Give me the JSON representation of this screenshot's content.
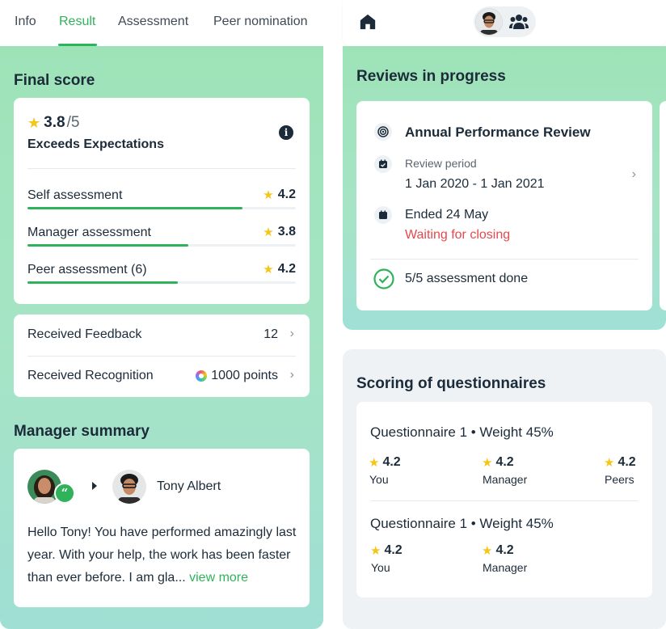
{
  "tabs": [
    {
      "label": "Info"
    },
    {
      "label": "Result"
    },
    {
      "label": "Assessment"
    },
    {
      "label": "Peer nomination"
    }
  ],
  "final_score": {
    "title": "Final score",
    "score": "3.8",
    "max": "/5",
    "label": "Exceeds Expectations",
    "assessments": [
      {
        "label": "Self assessment",
        "score": "4.2",
        "progress": 0.8
      },
      {
        "label": "Manager assessment",
        "score": "3.8",
        "progress": 0.6
      },
      {
        "label": "Peer assessment (6)",
        "score": "4.2",
        "progress": 0.56
      }
    ]
  },
  "feedback": {
    "received_feedback_label": "Received Feedback",
    "received_feedback_count": "12",
    "received_recognition_label": "Received Recognition",
    "received_recognition_value": "1000 points"
  },
  "manager_summary": {
    "title": "Manager summary",
    "manager_name": "Tony Albert",
    "text": "Hello Tony! You have performed amazingly last year. With your help, the work has been faster than ever before. I am gla...",
    "view_more": "view more"
  },
  "reviews": {
    "title": "Reviews in progress",
    "review_name": "Annual Performance Review",
    "period_label": "Review period",
    "period_value": "1 Jan 2020 - 1 Jan 2021",
    "ended": "Ended 24 May",
    "status": "Waiting for closing",
    "assessment_done": "5/5 assessment done"
  },
  "questionnaires": {
    "title": "Scoring of questionnaires",
    "items": [
      {
        "title": "Questionnaire 1 • Weight 45%",
        "scores": [
          {
            "value": "4.2",
            "who": "You"
          },
          {
            "value": "4.2",
            "who": "Manager"
          },
          {
            "value": "4.2",
            "who": "Peers"
          }
        ]
      },
      {
        "title": "Questionnaire 1 • Weight 45%",
        "scores": [
          {
            "value": "4.2",
            "who": "You"
          },
          {
            "value": "4.2",
            "who": "Manager"
          }
        ]
      }
    ]
  },
  "colors": {
    "accent": "#2fb35a",
    "status_red": "#e5484d",
    "star": "#f5c518",
    "text": "#1c2b39"
  },
  "icons": [
    "star-icon",
    "info-icon",
    "chevron-right-icon",
    "quote-icon",
    "home-icon",
    "team-icon",
    "target-icon",
    "calendar-check-icon",
    "calendar-icon",
    "check-circle-icon"
  ]
}
